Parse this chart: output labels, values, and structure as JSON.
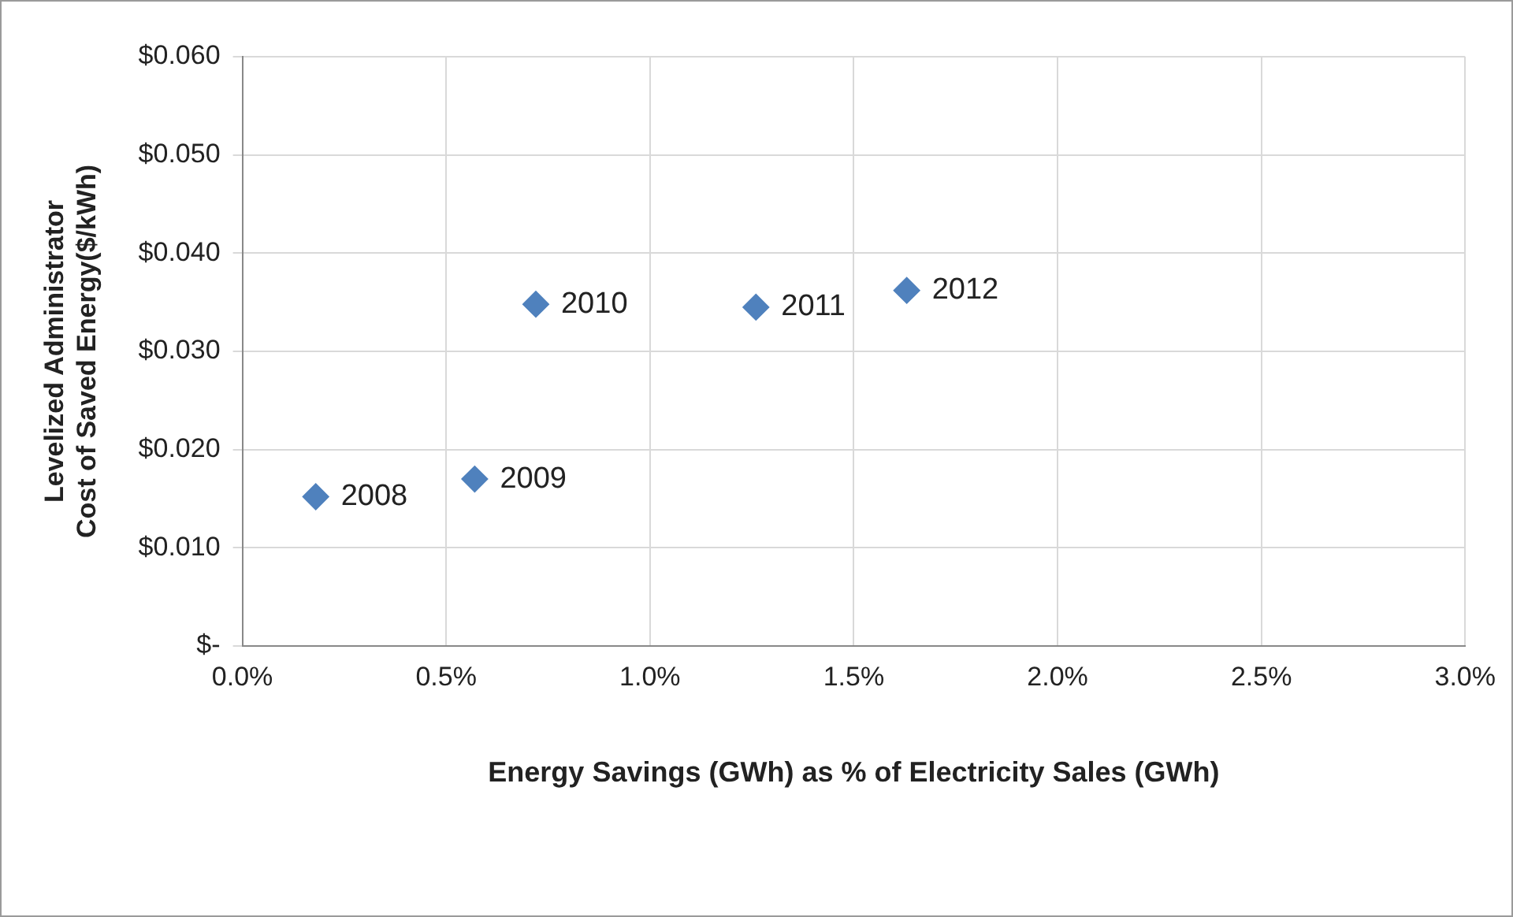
{
  "chart_data": {
    "type": "scatter",
    "xlabel": "Energy Savings (GWh) as % of Electricity Sales (GWh)",
    "ylabel": "Levelized Administrator Cost of Saved Energy($/kWh)",
    "x": [
      0.18,
      0.57,
      0.72,
      1.26,
      1.63
    ],
    "series": [
      {
        "color": "#4f81bd",
        "values": [
          0.0152,
          0.017,
          0.0348,
          0.0345,
          0.0362
        ]
      }
    ],
    "marker": "diamond",
    "grid": true,
    "legend": false,
    "xlim": [
      0,
      3
    ],
    "xticks": [
      {
        "value": 0,
        "label": "0.0%"
      },
      {
        "value": 0.5,
        "label": "0.5%"
      },
      {
        "value": 1,
        "label": "1.0%"
      },
      {
        "value": 1.5,
        "label": "1.5%"
      },
      {
        "value": 2,
        "label": "2.0%"
      },
      {
        "value": 2.5,
        "label": "2.5%"
      },
      {
        "value": 3,
        "label": "3.0%"
      }
    ],
    "ylim": [
      0,
      0.06
    ],
    "yticks": [
      {
        "value": 0,
        "label": "$-"
      },
      {
        "value": 0.01,
        "label": "$0.010"
      },
      {
        "value": 0.02,
        "label": "$0.020"
      },
      {
        "value": 0.03,
        "label": "$0.030"
      },
      {
        "value": 0.04,
        "label": "$0.040"
      },
      {
        "value": 0.05,
        "label": "$0.050"
      },
      {
        "value": 0.06,
        "label": "$0.060"
      }
    ],
    "annotations": [
      {
        "text": "2008",
        "x": 0.18,
        "y": 0.0152
      },
      {
        "text": "2009",
        "x": 0.57,
        "y": 0.017
      },
      {
        "text": "2010",
        "x": 0.72,
        "y": 0.0348
      },
      {
        "text": "2011",
        "x": 1.26,
        "y": 0.0345
      },
      {
        "text": "2012",
        "x": 1.63,
        "y": 0.0362
      }
    ]
  }
}
